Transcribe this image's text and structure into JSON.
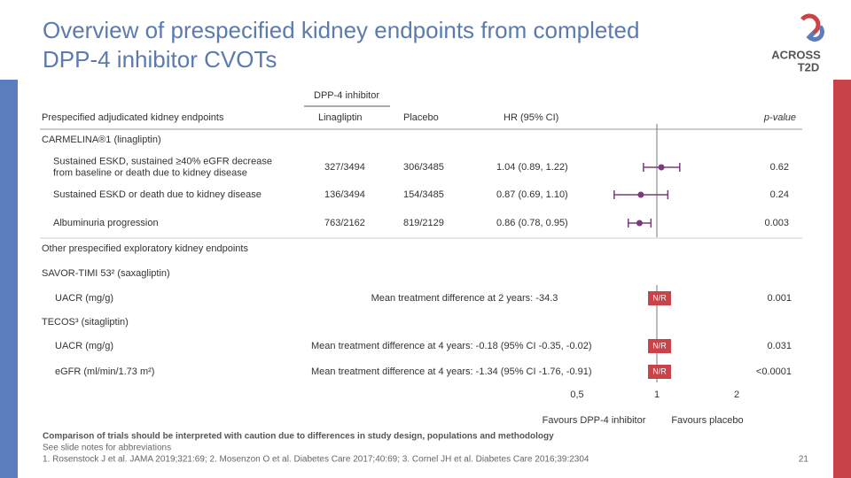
{
  "title": [
    "Overview of prespecified kidney endpoints from completed",
    "DPP‑4 inhibitor CVOTs"
  ],
  "logo": {
    "line1": "ACROSS",
    "line2": "T2D"
  },
  "table": {
    "group_header": "DPP-4 inhibitor",
    "columns": [
      "Prespecified adjudicated kidney endpoints",
      "Linagliptin",
      "Placebo",
      "HR (95% CI)",
      "p-value"
    ],
    "carmelina": {
      "label": "CARMELINA®1 (linagliptin)",
      "rows": [
        {
          "endpoint": [
            "Sustained ESKD, sustained ≥40% eGFR decrease",
            "from baseline or death due to kidney disease"
          ],
          "linagliptin": "327/3494",
          "placebo": "306/3485",
          "hr": "1.04 (0.89, 1.22)",
          "p": "0.62"
        },
        {
          "endpoint": [
            "Sustained ESKD or death due to kidney disease"
          ],
          "linagliptin": "136/3494",
          "placebo": "154/3485",
          "hr": "0.87 (0.69, 1.10)",
          "p": "0.24"
        },
        {
          "endpoint": [
            "Albuminuria progression"
          ],
          "linagliptin": "763/2162",
          "placebo": "819/2129",
          "hr": "0.86 (0.78, 0.95)",
          "p": "0.003"
        }
      ]
    },
    "subheading": "Other prespecified exploratory kidney endpoints",
    "savor": {
      "label": "SAVOR-TIMI 53² (saxagliptin)",
      "rows": [
        {
          "endpoint": "UACR (mg/g)",
          "effect": "Mean treatment difference at 2 years: -34.3",
          "p": "0.001"
        }
      ]
    },
    "tecos": {
      "label": "TECOS³ (sitagliptin)",
      "rows": [
        {
          "endpoint": "UACR (mg/g)",
          "effect": "Mean treatment difference at 4 years: -0.18 (95% CI -0.35, -0.02)",
          "p": "0.031"
        },
        {
          "endpoint": "eGFR (ml/min/1.73 m²)",
          "effect": "Mean treatment difference at 4 years: -1.34 (95% CI -1.76, -0.91)",
          "p": "<0.0001"
        }
      ]
    }
  },
  "forest": {
    "xlim": [
      0.5,
      2
    ],
    "xticks": [
      {
        "value": 0.5,
        "label": "0,5"
      },
      1,
      2
    ],
    "points": [
      {
        "hr": 1.04,
        "ci": [
          0.89,
          1.22
        ]
      },
      {
        "hr": 0.87,
        "ci": [
          0.69,
          1.1
        ]
      },
      {
        "hr": 0.86,
        "ci": [
          0.78,
          0.95
        ]
      }
    ],
    "nr_label": "N/R",
    "favours": [
      "Favours DPP-4 inhibitor",
      "Favours placebo"
    ]
  },
  "footnotes": [
    "Comparison of trials should be interpreted with caution due to differences in study design, populations and methodology",
    "See slide notes for abbreviations",
    "1. Rosenstock J et al. JAMA 2019;321:69; 2. Mosenzon O et al. Diabetes Care 2017;40:69; 3. Cornel JH et al. Diabetes Care 2016;39:2304"
  ],
  "page_number": "21"
}
